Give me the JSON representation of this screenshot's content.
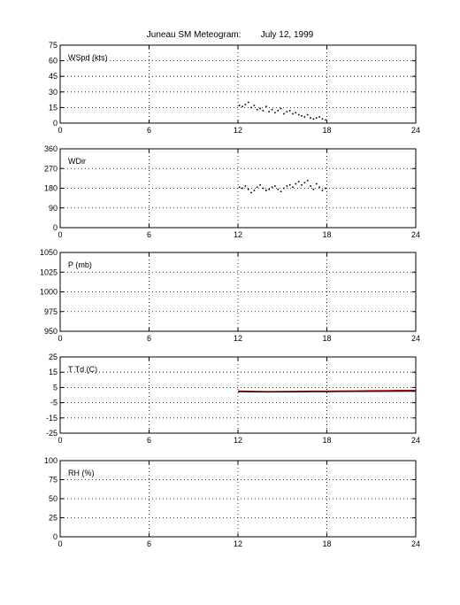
{
  "title": {
    "station": "Juneau SM Meteogram:",
    "date": "July 12, 1999"
  },
  "chart_data": [
    {
      "type": "scatter",
      "label": "WSpd (kts)",
      "xlim": [
        0,
        24
      ],
      "ylim": [
        0,
        75
      ],
      "xticks": [
        0,
        6,
        12,
        18,
        24
      ],
      "yticks": [
        0,
        15,
        30,
        45,
        60,
        75
      ],
      "grid": true,
      "series": [
        {
          "color": "#000000",
          "x": [
            12.1,
            12.3,
            12.5,
            12.7,
            12.9,
            13.1,
            13.3,
            13.5,
            13.7,
            13.9,
            14.1,
            14.3,
            14.5,
            14.7,
            14.9,
            15.1,
            15.3,
            15.5,
            15.7,
            15.9,
            16.1,
            16.3,
            16.5,
            16.7,
            16.9,
            17.1,
            17.3,
            17.5,
            17.7,
            17.9
          ],
          "y": [
            17,
            16,
            18,
            20,
            15,
            17,
            13,
            14,
            12,
            16,
            11,
            13,
            10,
            12,
            14,
            9,
            11,
            12,
            9,
            10,
            8,
            7,
            6,
            8,
            5,
            4,
            5,
            6,
            4,
            3
          ]
        }
      ]
    },
    {
      "type": "scatter",
      "label": "WDir",
      "xlim": [
        0,
        24
      ],
      "ylim": [
        0,
        360
      ],
      "xticks": [
        0,
        6,
        12,
        18,
        24
      ],
      "yticks": [
        0,
        90,
        180,
        270,
        360
      ],
      "grid": true,
      "series": [
        {
          "color": "#000000",
          "x": [
            12.1,
            12.3,
            12.5,
            12.7,
            12.9,
            13.1,
            13.3,
            13.5,
            13.7,
            13.9,
            14.1,
            14.3,
            14.5,
            14.7,
            14.9,
            15.1,
            15.3,
            15.5,
            15.7,
            15.9,
            16.1,
            16.3,
            16.5,
            16.7,
            16.9,
            17.1,
            17.3,
            17.5,
            17.7,
            17.9
          ],
          "y": [
            185,
            180,
            190,
            175,
            160,
            170,
            185,
            195,
            180,
            170,
            175,
            185,
            190,
            175,
            165,
            180,
            190,
            195,
            185,
            200,
            210,
            195,
            205,
            215,
            190,
            175,
            200,
            185,
            170,
            180
          ]
        }
      ]
    },
    {
      "type": "line",
      "label": "P (mb)",
      "xlim": [
        0,
        24
      ],
      "ylim": [
        950,
        1050
      ],
      "xticks": [
        0,
        6,
        12,
        18,
        24
      ],
      "yticks": [
        950,
        975,
        1000,
        1025,
        1050
      ],
      "grid": true,
      "series": []
    },
    {
      "type": "line",
      "label": "T Td (C)",
      "xlim": [
        0,
        24
      ],
      "ylim": [
        -25,
        25
      ],
      "xticks": [
        0,
        6,
        12,
        18,
        24
      ],
      "yticks": [
        -25,
        -15,
        -5,
        5,
        15,
        25
      ],
      "grid": true,
      "series": [
        {
          "color": "#cc0000",
          "x": [
            12,
            13,
            14,
            15,
            16,
            17,
            18,
            19,
            20,
            21,
            22,
            23,
            24
          ],
          "y": [
            2.6,
            2.4,
            2.2,
            2.3,
            2.4,
            2.5,
            2.5,
            2.6,
            2.7,
            2.8,
            2.9,
            3.0,
            3.0
          ]
        },
        {
          "color": "#000000",
          "x": [
            12,
            14,
            16,
            18,
            20,
            22,
            24
          ],
          "y": [
            2.2,
            2.0,
            2.1,
            2.2,
            2.3,
            2.4,
            2.5
          ]
        }
      ]
    },
    {
      "type": "line",
      "label": "RH (%)",
      "xlim": [
        0,
        24
      ],
      "ylim": [
        0,
        100
      ],
      "xticks": [
        0,
        6,
        12,
        18,
        24
      ],
      "yticks": [
        0,
        25,
        50,
        75,
        100
      ],
      "grid": true,
      "series": []
    }
  ]
}
